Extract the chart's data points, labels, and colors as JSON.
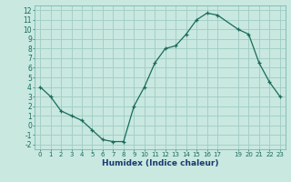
{
  "x": [
    0,
    1,
    2,
    3,
    4,
    5,
    6,
    7,
    8,
    9,
    10,
    11,
    12,
    13,
    14,
    15,
    16,
    17,
    19,
    20,
    21,
    22,
    23
  ],
  "y": [
    4.0,
    3.0,
    1.5,
    1.0,
    0.5,
    -0.5,
    -1.5,
    -1.7,
    -1.7,
    2.0,
    4.0,
    6.5,
    8.0,
    8.3,
    9.5,
    11.0,
    11.7,
    11.5,
    10.0,
    9.5,
    6.5,
    4.5,
    3.0
  ],
  "line_color": "#1a6b5a",
  "marker": "+",
  "bg_color": "#c8e8e0",
  "grid_color": "#a0ccc4",
  "xlabel": "Humidex (Indice chaleur)",
  "xlim": [
    -0.5,
    23.5
  ],
  "ylim": [
    -2.5,
    12.5
  ],
  "yticks": [
    -2,
    -1,
    0,
    1,
    2,
    3,
    4,
    5,
    6,
    7,
    8,
    9,
    10,
    11,
    12
  ],
  "xticks": [
    0,
    1,
    2,
    3,
    4,
    5,
    6,
    7,
    8,
    9,
    10,
    11,
    12,
    13,
    14,
    15,
    16,
    17,
    19,
    20,
    21,
    22,
    23
  ],
  "xlabel_color": "#1a3a6e",
  "tick_color": "#1a6b5a",
  "spine_color": "#7ab8b0"
}
